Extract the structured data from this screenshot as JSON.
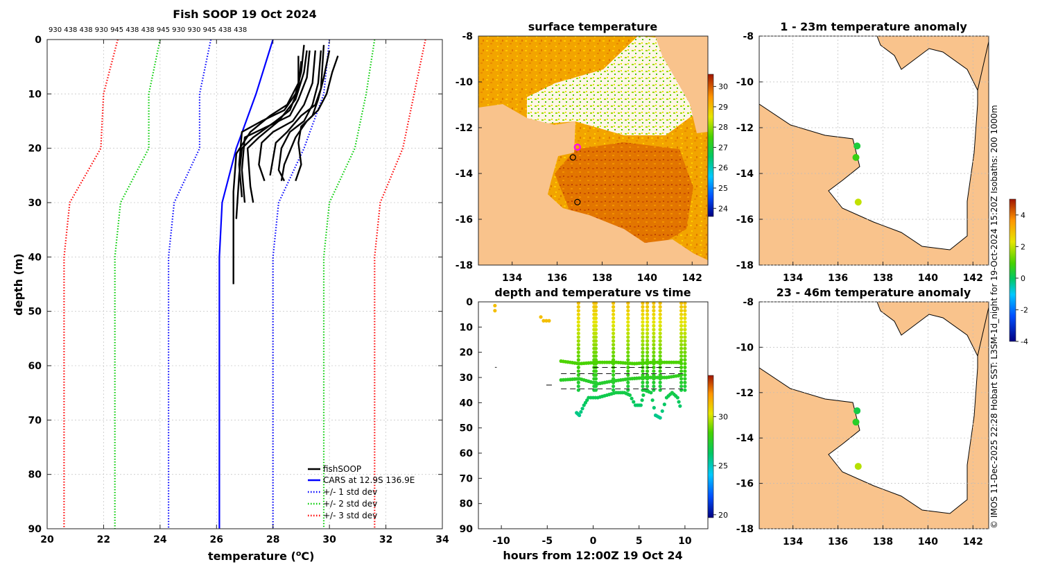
{
  "chart_data": [
    {
      "type": "line",
      "title": "Fish SOOP 19 Oct 2024",
      "sensor_ids": "930 438 438 930 945 438 438 945 930 930 945 438 438",
      "xlabel": "temperature (",
      "xlabel_sup": "o",
      "xlabel_suffix": "C)",
      "ylabel": "depth (m)",
      "xlim": [
        20,
        34
      ],
      "ylim": [
        0,
        90
      ],
      "xticks": [
        20,
        22,
        24,
        26,
        28,
        30,
        32,
        34
      ],
      "yticks": [
        0,
        10,
        20,
        30,
        40,
        50,
        60,
        70,
        80,
        90
      ],
      "climatology_depths": [
        0,
        10,
        20,
        30,
        40,
        90
      ],
      "series": [
        {
          "name": "fishSOOP",
          "color": "#000000"
        },
        {
          "name": "CARS at 12.9S 136.9E",
          "color": "#0000ff",
          "temps": [
            28.0,
            27.4,
            26.7,
            26.2,
            26.1,
            26.1
          ]
        },
        {
          "name": "+/- 1 std dev",
          "color": "#0000ff",
          "minus": [
            25.8,
            25.4,
            25.4,
            24.5,
            24.3,
            24.3
          ],
          "plus": [
            30.0,
            29.8,
            29.1,
            28.2,
            28.0,
            28.0
          ]
        },
        {
          "name": "+/- 2 std dev",
          "color": "#00cc00",
          "minus": [
            24.0,
            23.6,
            23.6,
            22.6,
            22.4,
            22.4
          ],
          "plus": [
            31.6,
            31.3,
            30.9,
            30.0,
            29.8,
            29.8
          ]
        },
        {
          "name": "+/- 3 std dev",
          "color": "#ff0000",
          "minus": [
            22.5,
            22.0,
            21.9,
            20.8,
            20.6,
            20.6
          ],
          "plus": [
            33.4,
            33.0,
            32.6,
            31.8,
            31.6,
            31.6
          ]
        }
      ],
      "profiles": [
        [
          [
            29.1,
            1
          ],
          [
            29.0,
            6
          ],
          [
            28.8,
            10
          ],
          [
            28.4,
            13
          ],
          [
            27.6,
            15
          ],
          [
            26.9,
            17
          ],
          [
            26.8,
            23
          ],
          [
            26.9,
            29
          ]
        ],
        [
          [
            29.3,
            2
          ],
          [
            29.2,
            7
          ],
          [
            28.9,
            11
          ],
          [
            28.6,
            14
          ],
          [
            27.8,
            16
          ],
          [
            27.0,
            18
          ],
          [
            26.9,
            24
          ],
          [
            27.0,
            30
          ]
        ],
        [
          [
            28.9,
            3
          ],
          [
            28.9,
            8
          ],
          [
            28.5,
            12
          ],
          [
            27.9,
            14
          ],
          [
            27.2,
            17
          ],
          [
            26.7,
            21
          ],
          [
            26.6,
            28
          ],
          [
            26.6,
            45
          ]
        ],
        [
          [
            29.7,
            2
          ],
          [
            29.6,
            8
          ],
          [
            29.4,
            12
          ],
          [
            29.1,
            15
          ],
          [
            28.6,
            17
          ],
          [
            28.3,
            20
          ],
          [
            28.2,
            24
          ],
          [
            28.4,
            26
          ]
        ],
        [
          [
            30.0,
            2
          ],
          [
            29.8,
            7
          ],
          [
            29.6,
            11
          ],
          [
            29.4,
            14
          ],
          [
            29.0,
            16
          ],
          [
            28.9,
            19
          ],
          [
            29.0,
            23
          ],
          [
            28.8,
            26
          ]
        ],
        [
          [
            29.8,
            1
          ],
          [
            29.7,
            9
          ],
          [
            29.5,
            12
          ],
          [
            29.0,
            14
          ],
          [
            28.5,
            17
          ],
          [
            28.1,
            19
          ],
          [
            28.0,
            22
          ],
          [
            27.9,
            25
          ]
        ],
        [
          [
            30.3,
            3
          ],
          [
            30.1,
            6
          ],
          [
            29.9,
            10
          ],
          [
            29.6,
            13
          ],
          [
            29.2,
            15
          ],
          [
            28.8,
            18
          ],
          [
            28.4,
            23
          ],
          [
            28.3,
            26
          ]
        ],
        [
          [
            29.2,
            2
          ],
          [
            29.1,
            6
          ],
          [
            28.8,
            11
          ],
          [
            28.2,
            15
          ],
          [
            27.5,
            18
          ],
          [
            27.1,
            20
          ],
          [
            27.2,
            27
          ],
          [
            27.3,
            30
          ]
        ],
        [
          [
            29.5,
            2
          ],
          [
            29.4,
            8
          ],
          [
            29.1,
            12
          ],
          [
            28.7,
            15
          ],
          [
            28.0,
            17
          ],
          [
            27.6,
            19
          ],
          [
            27.5,
            23
          ],
          [
            27.7,
            26
          ]
        ],
        [
          [
            29.0,
            4
          ],
          [
            28.9,
            9
          ],
          [
            28.6,
            13
          ],
          [
            28.1,
            15
          ],
          [
            27.3,
            18
          ],
          [
            26.9,
            20
          ],
          [
            26.8,
            25
          ],
          [
            26.7,
            33
          ]
        ]
      ]
    },
    {
      "type": "heatmap",
      "title": "surface temperature",
      "xlim": [
        132.5,
        142.7
      ],
      "ylim": [
        -18,
        -8
      ],
      "xticks": [
        134,
        136,
        138,
        140,
        142
      ],
      "yticks": [
        -8,
        -10,
        -12,
        -14,
        -16,
        -18
      ],
      "colorbar": {
        "range": [
          23.6,
          30.6
        ],
        "ticks": [
          24,
          25,
          26,
          27,
          28,
          29,
          30
        ]
      },
      "markers": [
        {
          "lon": 136.9,
          "lat": -12.85,
          "color": "#ff00ff"
        },
        {
          "lon": 136.7,
          "lat": -13.3,
          "color": "#000000"
        },
        {
          "lon": 136.9,
          "lat": -15.25,
          "color": "#000000"
        }
      ]
    },
    {
      "type": "scatter",
      "title": "1 - 23m temperature anomaly",
      "xlim": [
        132.5,
        142.7
      ],
      "ylim": [
        -18,
        -8
      ],
      "xticks": [
        134,
        136,
        138,
        140,
        142
      ],
      "yticks": [
        -8,
        -10,
        -12,
        -14,
        -16,
        -18
      ],
      "points": [
        {
          "lon": 136.85,
          "lat": -12.8,
          "anomaly": 0.4
        },
        {
          "lon": 136.8,
          "lat": -13.3,
          "anomaly": 0.8
        },
        {
          "lon": 136.9,
          "lat": -15.25,
          "anomaly": 2.0
        }
      ]
    },
    {
      "type": "scatter",
      "title": "23 - 46m temperature anomaly",
      "xlim": [
        132.5,
        142.7
      ],
      "ylim": [
        -18,
        -8
      ],
      "xticks": [
        134,
        136,
        138,
        140,
        142
      ],
      "yticks": [
        -8,
        -10,
        -12,
        -14,
        -16,
        -18
      ],
      "points": [
        {
          "lon": 136.85,
          "lat": -12.8,
          "anomaly": 0.3
        },
        {
          "lon": 136.8,
          "lat": -13.3,
          "anomaly": 0.6
        },
        {
          "lon": 136.9,
          "lat": -15.25,
          "anomaly": 1.9
        }
      ],
      "colorbar": {
        "range": [
          -4,
          5
        ],
        "ticks": [
          -4,
          -2,
          0,
          2,
          4
        ]
      }
    },
    {
      "type": "scatter",
      "title": "depth and temperature vs time",
      "xlabel": "hours from 12:00Z 19 Oct 24",
      "xlim": [
        -12.5,
        12.5
      ],
      "ylim": [
        0,
        90
      ],
      "xticks": [
        -10,
        -5,
        0,
        5,
        10
      ],
      "yticks": [
        0,
        10,
        20,
        30,
        40,
        50,
        60,
        70,
        80,
        90
      ],
      "colorbar": {
        "range": [
          19.7,
          34.2
        ],
        "ticks": [
          20,
          25,
          30
        ]
      },
      "surface_points": [
        {
          "t": -10.7,
          "depth": 1.5,
          "temp": 31
        },
        {
          "t": -10.7,
          "depth": 3.5,
          "temp": 31
        },
        {
          "t": -5.7,
          "depth": 6,
          "temp": 31
        },
        {
          "t": -5.4,
          "depth": 7.5,
          "temp": 31
        },
        {
          "t": -5.1,
          "depth": 7.5,
          "temp": 31
        },
        {
          "t": -4.8,
          "depth": 7.5,
          "temp": 31
        }
      ],
      "casts": [
        -1.6,
        0.1,
        0.3,
        2.2,
        3.8,
        5.4,
        5.9,
        6.6,
        7.3,
        9.6,
        10.0
      ],
      "bottom_track": [
        [
          -1.8,
          44
        ],
        [
          -1.5,
          45
        ],
        [
          -1.0,
          41
        ],
        [
          -0.5,
          38
        ],
        [
          0.5,
          38
        ],
        [
          1.5,
          37
        ],
        [
          2.5,
          36
        ],
        [
          3.4,
          36
        ],
        [
          4.0,
          37
        ],
        [
          4.6,
          41
        ],
        [
          5.2,
          41
        ],
        [
          5.6,
          35
        ],
        [
          6.3,
          36
        ],
        [
          6.8,
          45
        ],
        [
          7.3,
          46
        ],
        [
          8.0,
          38
        ],
        [
          8.6,
          36
        ],
        [
          9.2,
          38
        ],
        [
          9.6,
          43
        ]
      ],
      "mid_track": [
        [
          -3.5,
          31
        ],
        [
          -1.5,
          30.5
        ],
        [
          0.5,
          32.5
        ],
        [
          2.0,
          31.5
        ],
        [
          4.0,
          30.5
        ],
        [
          6.0,
          30
        ],
        [
          8.0,
          30
        ],
        [
          9.8,
          29
        ]
      ],
      "upper_track": [
        [
          -3.5,
          23.5
        ],
        [
          -1.5,
          24.5
        ],
        [
          0.5,
          24
        ],
        [
          2.5,
          24
        ],
        [
          4.5,
          24.5
        ],
        [
          6.5,
          24
        ],
        [
          9.8,
          24
        ]
      ],
      "thermocline_marks": [
        {
          "t": -4.8,
          "depth": 33
        }
      ]
    }
  ],
  "credit": "© IMOS 11-Dec-2025 22:28 Hobart SST: L3SM-1d_night for 19-Oct-2024 15:20Z Isobaths: 200  1000m"
}
